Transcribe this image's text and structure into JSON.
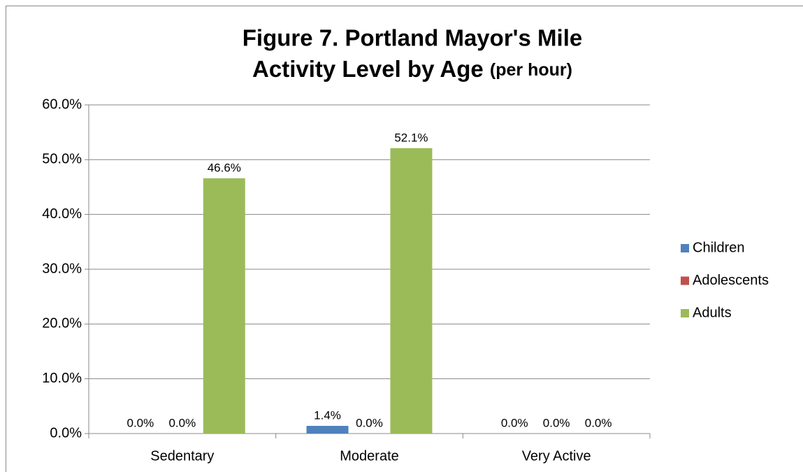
{
  "chart_data": {
    "type": "bar",
    "title": [
      "Figure 7. Portland Mayor's Mile",
      "Activity Level by Age",
      "(per hour)"
    ],
    "categories": [
      "Sedentary",
      "Moderate",
      "Very Active"
    ],
    "series": [
      {
        "name": "Children",
        "color": "#4f81bd",
        "values": [
          0,
          1.4,
          0
        ],
        "value_labels": [
          "0.0%",
          "1.4%",
          "0.0%"
        ]
      },
      {
        "name": "Adolescents",
        "color": "#c0504d",
        "values": [
          0,
          0,
          0
        ],
        "value_labels": [
          "0.0%",
          "0.0%",
          "0.0%"
        ]
      },
      {
        "name": "Adults",
        "color": "#9bbb59",
        "values": [
          46.6,
          52.1,
          0
        ],
        "value_labels": [
          "46.6%",
          "52.1%",
          "0.0%"
        ]
      }
    ],
    "ylim": [
      0,
      60
    ],
    "yticks": [
      {
        "value": 0,
        "label": "0.0%"
      },
      {
        "value": 10,
        "label": "10.0%"
      },
      {
        "value": 20,
        "label": "20.0%"
      },
      {
        "value": 30,
        "label": "30.0%"
      },
      {
        "value": 40,
        "label": "40.0%"
      },
      {
        "value": 50,
        "label": "50.0%"
      },
      {
        "value": 60,
        "label": "60.0%"
      }
    ],
    "grid": true,
    "legend": "right"
  }
}
